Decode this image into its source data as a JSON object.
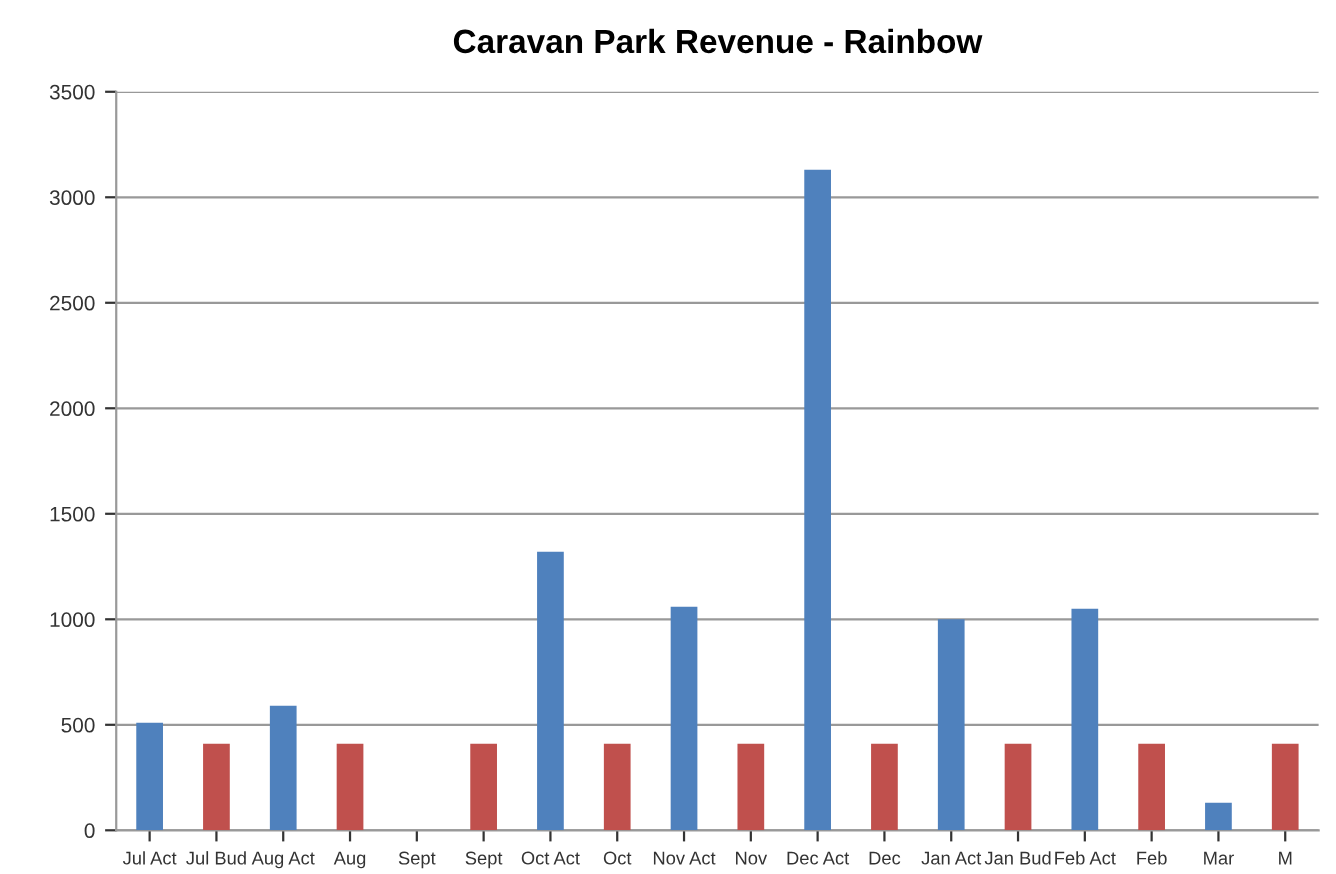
{
  "chart_data": {
    "type": "bar",
    "title": "Caravan Park Revenue - Rainbow",
    "categories": [
      "Jul Act",
      "Jul Bud",
      "Aug Act",
      "Aug",
      "Sept",
      "Sept",
      "Oct Act",
      "Oct",
      "Nov Act",
      "Nov",
      "Dec Act",
      "Dec",
      "Jan Act",
      "Jan Bud",
      "Feb Act",
      "Feb",
      "Mar",
      "M"
    ],
    "values": [
      510,
      410,
      590,
      410,
      0,
      410,
      1320,
      410,
      1060,
      410,
      3130,
      410,
      1000,
      410,
      1050,
      410,
      130,
      410
    ],
    "colors": [
      "#4f81bd",
      "#c0504d",
      "#4f81bd",
      "#c0504d",
      "#4f81bd",
      "#c0504d",
      "#4f81bd",
      "#c0504d",
      "#4f81bd",
      "#c0504d",
      "#4f81bd",
      "#c0504d",
      "#4f81bd",
      "#c0504d",
      "#4f81bd",
      "#c0504d",
      "#4f81bd",
      "#c0504d"
    ],
    "ylim": [
      0,
      3500
    ],
    "yticks": [
      0,
      500,
      1000,
      1500,
      2000,
      2500,
      3000,
      3500
    ],
    "grid": "y"
  }
}
